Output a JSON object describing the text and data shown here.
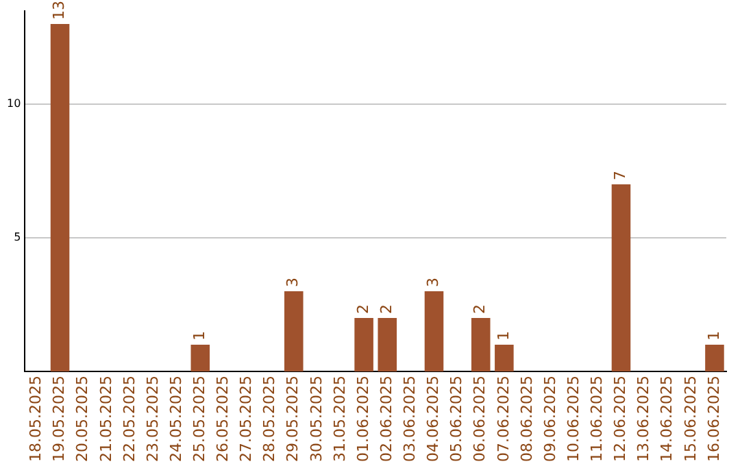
{
  "chart_data": {
    "type": "bar",
    "categories": [
      "18.05.2025",
      "19.05.2025",
      "20.05.2025",
      "21.05.2025",
      "22.05.2025",
      "23.05.2025",
      "24.05.2025",
      "25.05.2025",
      "26.05.2025",
      "27.05.2025",
      "28.05.2025",
      "29.05.2025",
      "30.05.2025",
      "31.05.2025",
      "01.06.2025",
      "02.06.2025",
      "03.06.2025",
      "04.06.2025",
      "05.06.2025",
      "06.06.2025",
      "07.06.2025",
      "08.06.2025",
      "09.06.2025",
      "10.06.2025",
      "11.06.2025",
      "12.06.2025",
      "13.06.2025",
      "14.06.2025",
      "15.06.2025",
      "16.06.2025"
    ],
    "values": [
      0,
      13,
      0,
      0,
      0,
      0,
      0,
      1,
      0,
      0,
      0,
      3,
      0,
      0,
      2,
      2,
      0,
      3,
      0,
      2,
      1,
      0,
      0,
      0,
      0,
      7,
      0,
      0,
      0,
      1
    ],
    "value_labels": [
      null,
      "13",
      null,
      null,
      null,
      null,
      null,
      "1",
      null,
      null,
      null,
      "3",
      null,
      null,
      "2",
      "2",
      null,
      "3",
      null,
      "2",
      "1",
      null,
      null,
      null,
      null,
      "7",
      null,
      null,
      null,
      "1"
    ],
    "color": "#a0522d",
    "ylim": [
      0,
      13.5
    ],
    "yticks": [
      5,
      10
    ],
    "grid": "y",
    "legend": false
  }
}
